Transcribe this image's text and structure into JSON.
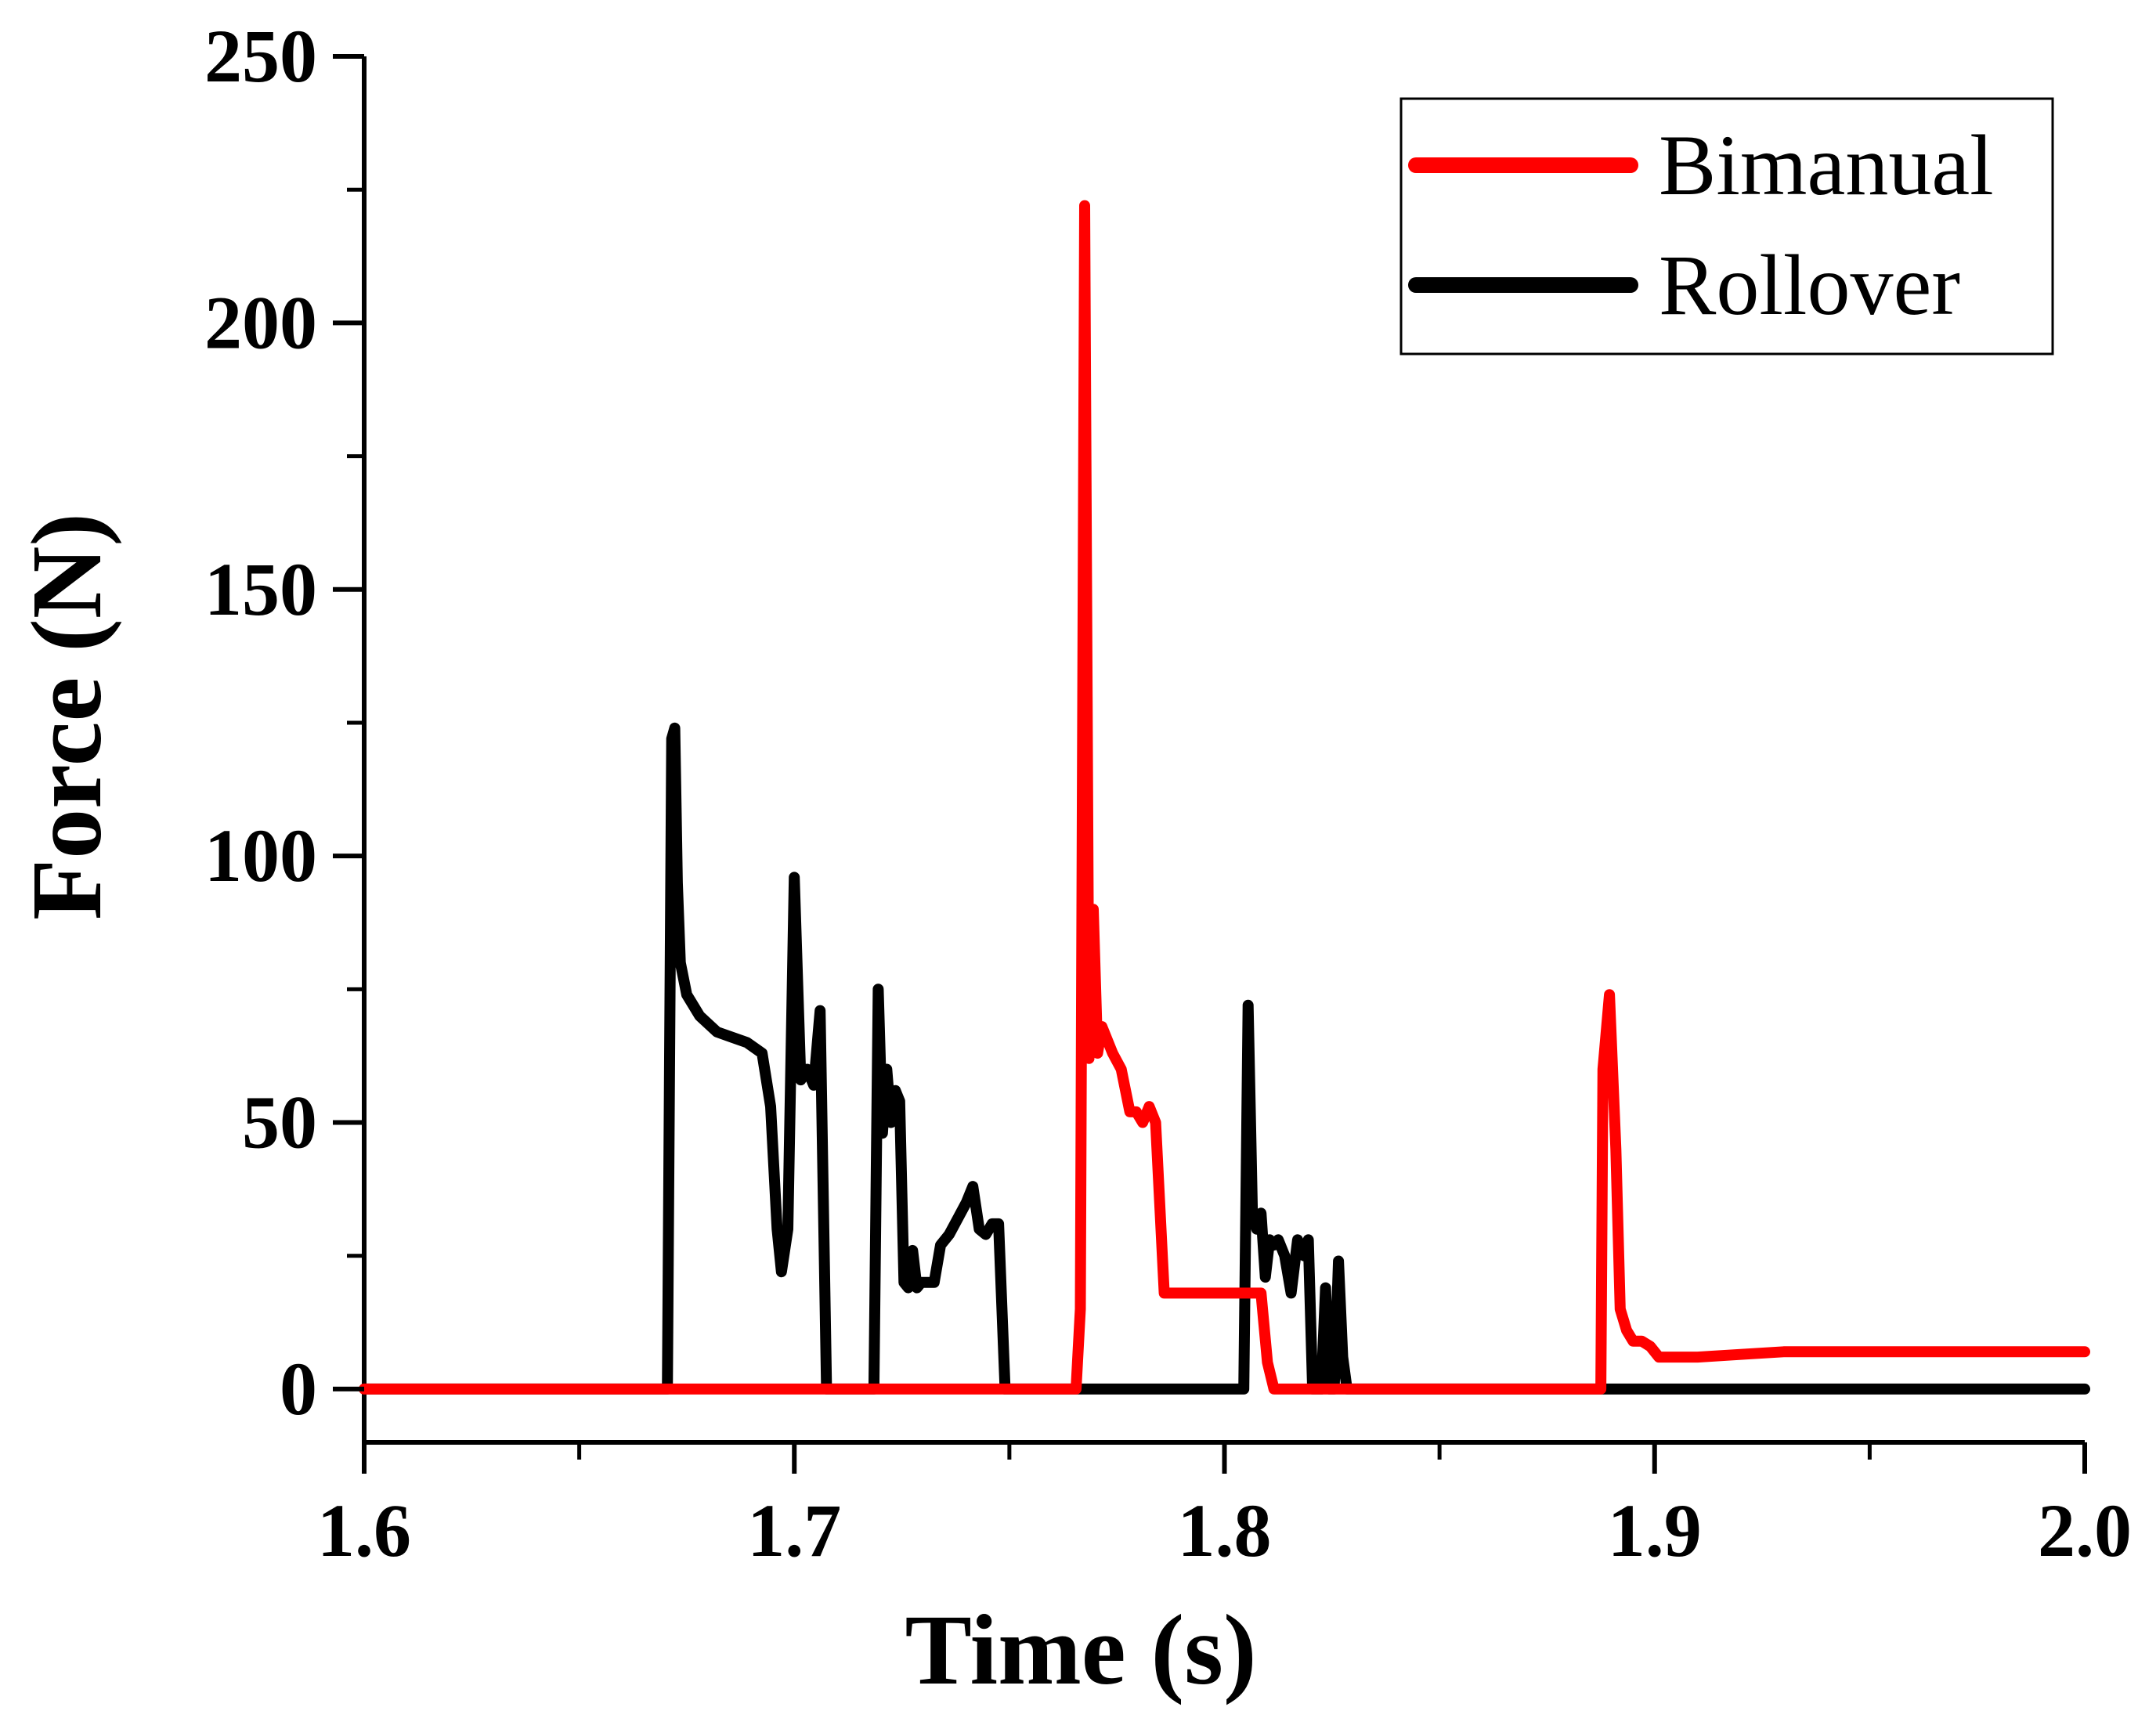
{
  "chart_data": {
    "type": "line",
    "xlabel": "Time (s)",
    "ylabel": "Force (N)",
    "xlim": [
      1.6,
      2.0
    ],
    "ylim": [
      -10,
      250
    ],
    "xticks": [
      "1.6",
      "1.7",
      "1.8",
      "1.9",
      "2.0"
    ],
    "xtick_values": [
      1.6,
      1.7,
      1.8,
      1.9,
      2.0
    ],
    "yticks": [
      "0",
      "50",
      "100",
      "150",
      "200",
      "250"
    ],
    "ytick_values": [
      0,
      50,
      100,
      150,
      200,
      250
    ],
    "grid": false,
    "legend_position": "top-right",
    "series": [
      {
        "name": "Rollover",
        "color": "#000000",
        "x": [
          1.6,
          1.6705,
          1.6715,
          1.6722,
          1.6728,
          1.6735,
          1.675,
          1.678,
          1.682,
          1.6855,
          1.689,
          1.6925,
          1.6945,
          1.696,
          1.697,
          1.6985,
          1.7,
          1.7015,
          1.703,
          1.7045,
          1.706,
          1.7075,
          1.709,
          1.7185,
          1.7195,
          1.7205,
          1.7215,
          1.7225,
          1.7235,
          1.7245,
          1.7255,
          1.7265,
          1.7275,
          1.7285,
          1.7295,
          1.731,
          1.7325,
          1.734,
          1.736,
          1.738,
          1.74,
          1.7415,
          1.743,
          1.7445,
          1.746,
          1.7475,
          1.749,
          1.7505,
          1.752,
          1.7535,
          1.7545,
          1.8045,
          1.8055,
          1.8065,
          1.8075,
          1.8085,
          1.8095,
          1.8105,
          1.8115,
          1.8125,
          1.814,
          1.8155,
          1.817,
          1.8185,
          1.8195,
          1.8205,
          1.8215,
          1.8225,
          1.8235,
          1.8245,
          1.8255,
          1.8265,
          1.8275,
          1.8285,
          1.8295,
          1.8305,
          1.8315,
          1.8325,
          1.8335,
          1.834,
          1.8355,
          1.8365,
          1.8375,
          1.8385,
          1.8395,
          1.8425,
          1.8435,
          1.8445,
          1.8455,
          1.8475,
          1.8495,
          1.8505,
          1.8515,
          1.8525,
          1.8535,
          1.8545,
          2.0
        ],
        "y": [
          0,
          0,
          122,
          124,
          95,
          80,
          74,
          70,
          67,
          66,
          65,
          63,
          53,
          30,
          22,
          30,
          96,
          58,
          60,
          57,
          71,
          0,
          0,
          0,
          75,
          48,
          60,
          50,
          56,
          54,
          20,
          19,
          26,
          19,
          20,
          20,
          20,
          27,
          29,
          32,
          35,
          38,
          30,
          29,
          31,
          31,
          0,
          0,
          0,
          0,
          0,
          0,
          72,
          33,
          30,
          33,
          21,
          28,
          27,
          28,
          25,
          18,
          28,
          25,
          28,
          0,
          0,
          0,
          19,
          0,
          0,
          24,
          6,
          0,
          0,
          0,
          0,
          0,
          0,
          0,
          0,
          0,
          0,
          0,
          0,
          0,
          0,
          0,
          0,
          0,
          0,
          0,
          0,
          0,
          0,
          0,
          0
        ]
      },
      {
        "name": "Bimanual",
        "color": "#ff0000",
        "x": [
          1.6,
          1.7655,
          1.7665,
          1.7675,
          1.7685,
          1.7695,
          1.7705,
          1.7715,
          1.7725,
          1.774,
          1.776,
          1.778,
          1.7795,
          1.781,
          1.7825,
          1.784,
          1.786,
          1.7875,
          1.789,
          1.7905,
          1.792,
          1.7935,
          1.796,
          1.8,
          1.806,
          1.8085,
          1.81,
          1.8115,
          1.813,
          1.8145,
          1.887,
          1.8875,
          1.888,
          1.8895,
          1.891,
          1.892,
          1.8935,
          1.895,
          1.897,
          1.899,
          1.901,
          1.903,
          1.906,
          1.91,
          1.92,
          1.93,
          2.0
        ],
        "y": [
          0,
          0,
          15,
          222,
          62,
          90,
          63,
          68,
          66,
          63,
          60,
          52,
          52,
          50,
          53,
          50,
          18,
          18,
          18,
          18,
          18,
          18,
          18,
          18,
          18,
          18,
          5,
          0,
          0,
          0,
          0,
          0,
          60,
          74,
          45,
          15,
          11,
          9,
          9,
          8,
          6,
          6,
          6,
          6,
          6.5,
          7,
          7
        ]
      }
    ]
  }
}
